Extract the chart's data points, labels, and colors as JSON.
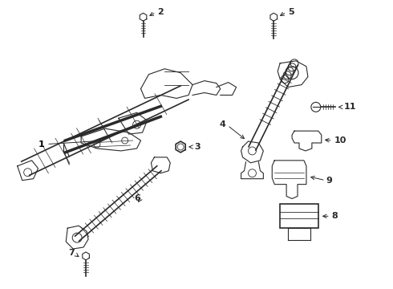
{
  "background_color": "#ffffff",
  "line_color": "#2a2a2a",
  "label_color": "#000000",
  "figure_width": 4.9,
  "figure_height": 3.6,
  "dpi": 100
}
